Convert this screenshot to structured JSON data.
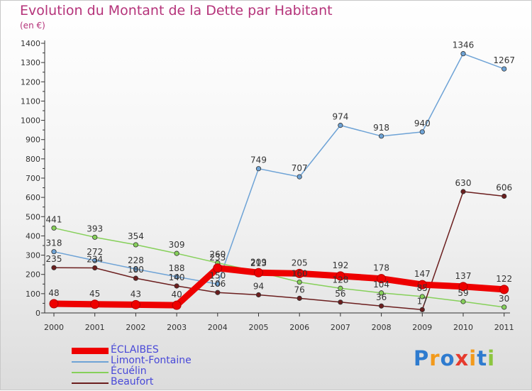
{
  "chart_data": {
    "type": "line",
    "title": "Evolution du Montant de la Dette par Habitant",
    "subtitle": "(en €)",
    "categories": [
      "2000",
      "2001",
      "2002",
      "2003",
      "2004",
      "2005",
      "2006",
      "2007",
      "2008",
      "2009",
      "2010",
      "2011"
    ],
    "ylim": [
      0,
      1400
    ],
    "yticks": [
      0,
      100,
      200,
      300,
      400,
      500,
      600,
      700,
      800,
      900,
      1000,
      1100,
      1200,
      1300,
      1400
    ],
    "grid": false,
    "legend_position": "bottom-left",
    "series": [
      {
        "name": "ÉCLAIBES",
        "color": "#ee0000",
        "values": [
          48,
          45,
          43,
          40,
          233,
          209,
          205,
          192,
          178,
          147,
          137,
          122
        ]
      },
      {
        "name": "Limont-Fontaine",
        "color": "#6ea3d6",
        "values": [
          318,
          272,
          228,
          188,
          150,
          749,
          707,
          974,
          918,
          940,
          1346,
          1267
        ]
      },
      {
        "name": "Écuélin",
        "color": "#86d05a",
        "values": [
          441,
          393,
          354,
          309,
          260,
          213,
          160,
          128,
          104,
          85,
          59,
          30
        ]
      },
      {
        "name": "Beaufort",
        "color": "#6b1e1e",
        "values": [
          235,
          234,
          180,
          140,
          106,
          94,
          76,
          56,
          36,
          17,
          630,
          606
        ]
      }
    ]
  },
  "logo": {
    "letters": [
      "P",
      "r",
      "o",
      "x",
      "i",
      "t",
      "i"
    ],
    "colors": [
      "#2e7bcf",
      "#f29a1c",
      "#2e7bcf",
      "#e63a2e",
      "#f29a1c",
      "#2e7bcf",
      "#8cc63f"
    ]
  }
}
